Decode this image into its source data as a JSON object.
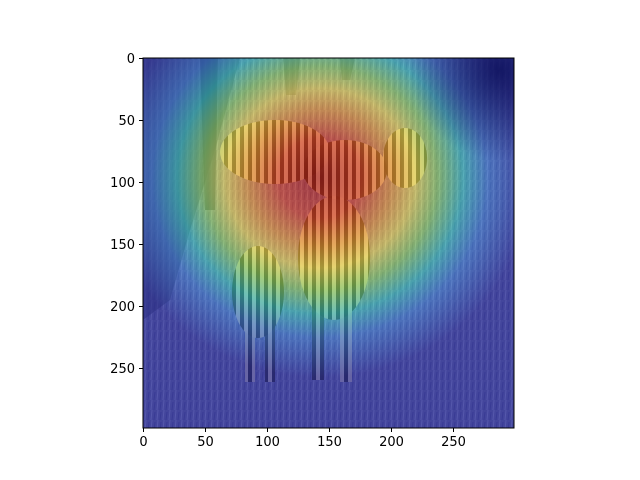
{
  "image": {
    "subject": "zebras",
    "overlay": "heatmap",
    "colormap": "jet"
  },
  "axes": {
    "x_ticks": [
      "0",
      "50",
      "100",
      "150",
      "200",
      "250"
    ],
    "y_ticks": [
      "0",
      "50",
      "100",
      "150",
      "200",
      "250"
    ],
    "xlim": [
      0,
      299
    ],
    "ylim": [
      299,
      0
    ]
  },
  "colors": {
    "background": "#ffffff",
    "axis": "#000000"
  }
}
